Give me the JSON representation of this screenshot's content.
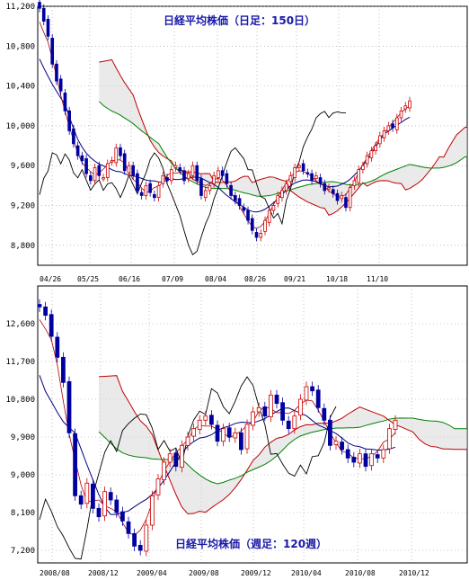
{
  "chart_data": [
    {
      "type": "candlestick",
      "title": "日経平均株価（日足：150日）",
      "ylim": [
        8600,
        11200
      ],
      "yticks": [
        "11,200",
        "10,800",
        "10,400",
        "10,000",
        "9,600",
        "9,200",
        "8,800"
      ],
      "ytick_values": [
        11200,
        10800,
        10400,
        10000,
        9600,
        9200,
        8800
      ],
      "xticks": [
        "04/26",
        "05/25",
        "06/16",
        "07/09",
        "08/04",
        "08/26",
        "09/21",
        "10/18",
        "11/10"
      ],
      "grid": true,
      "series": [
        {
          "role": "price",
          "color": "#0000a0",
          "values": [
            11180,
            11050,
            10900,
            10620,
            10450,
            10350,
            10150,
            9950,
            9820,
            9700,
            9650,
            9520,
            9450,
            9580,
            9500,
            9480,
            9620,
            9650,
            9780,
            9700,
            9550,
            9600,
            9500,
            9350,
            9300,
            9400,
            9330,
            9280,
            9400,
            9500,
            9450,
            9560,
            9600,
            9550,
            9450,
            9520,
            9600,
            9450,
            9300,
            9350,
            9400,
            9500,
            9550,
            9500,
            9420,
            9300,
            9250,
            9200,
            9150,
            9050,
            8950,
            8880,
            8920,
            9050,
            9150,
            9200,
            9300,
            9350,
            9420,
            9500,
            9580,
            9600,
            9550,
            9520,
            9450,
            9500,
            9420,
            9350,
            9380,
            9320,
            9250,
            9300,
            9180,
            9380,
            9450,
            9560,
            9600,
            9700,
            9750,
            9800,
            9900,
            9950,
            10000,
            9980,
            10080,
            10150,
            10200,
            10250
          ]
        },
        {
          "role": "leading span A / B boundary",
          "color": "#c00000",
          "values": [
            null
          ]
        },
        {
          "role": "lagging span",
          "color": "#008000",
          "values": [
            null
          ]
        }
      ]
    },
    {
      "type": "candlestick",
      "title": "日経平均株価（週足：120週）",
      "ylim": [
        6900,
        13500
      ],
      "yticks": [
        "12,600",
        "11,700",
        "10,800",
        "9,900",
        "9,000",
        "8,100",
        "7,200"
      ],
      "ytick_values": [
        12600,
        11700,
        10800,
        9900,
        9000,
        8100,
        7200
      ],
      "xticks": [
        "2008/08",
        "2008/12",
        "2009/04",
        "2009/08",
        "2009/12",
        "2010/04",
        "2010/08",
        "2010/12"
      ],
      "grid": true,
      "series": [
        {
          "role": "price",
          "color": "#0000a0",
          "values": [
            13000,
            12800,
            12300,
            11800,
            11200,
            10000,
            8500,
            8300,
            8800,
            8200,
            8000,
            8600,
            8400,
            8100,
            7900,
            7600,
            7300,
            7200,
            7800,
            8500,
            8900,
            9300,
            9500,
            9200,
            9700,
            9900,
            10100,
            10300,
            10400,
            10200,
            9800,
            10100,
            9900,
            10000,
            9600,
            10200,
            10500,
            10600,
            10400,
            10900,
            10700,
            10300,
            10100,
            10400,
            10800,
            11100,
            11000,
            10600,
            10300,
            9700,
            9800,
            9600,
            9400,
            9300,
            9500,
            9200,
            9500,
            9400,
            9600,
            10100,
            10300
          ]
        }
      ]
    }
  ]
}
